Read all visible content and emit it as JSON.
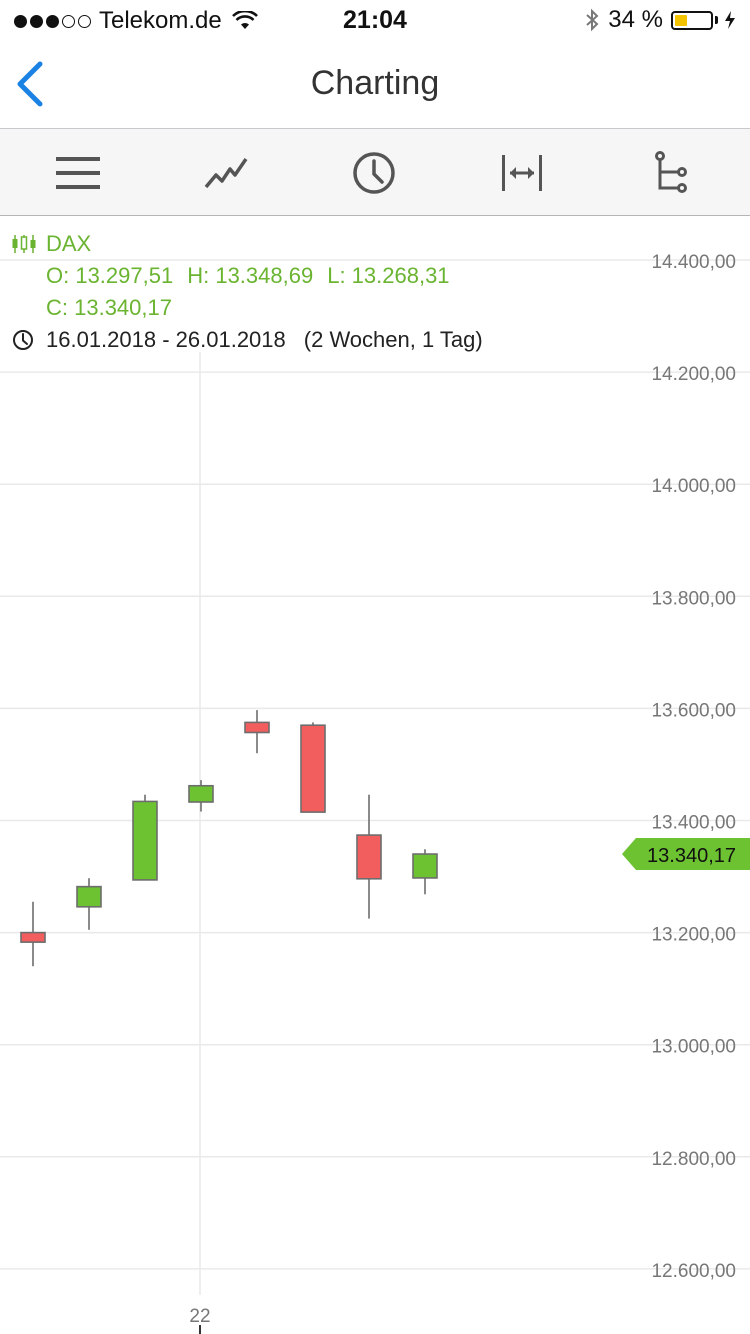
{
  "status_bar": {
    "carrier": "Telekom.de",
    "time": "21:04",
    "battery_percent": "34 %",
    "battery_level": 0.34,
    "signal_bars_filled": 3,
    "signal_bars_total": 5
  },
  "nav": {
    "title": "Charting"
  },
  "toolbar": {
    "icons": [
      "menu-icon",
      "line-chart-icon",
      "clock-icon",
      "expand-horizontal-icon",
      "tree-icon"
    ]
  },
  "instrument": {
    "name": "DAX",
    "open": "O: 13.297,51",
    "high": "H: 13.348,69",
    "low": "L: 13.268,31",
    "close": "C: 13.340,17",
    "range": "16.01.2018 - 26.01.2018",
    "range_extra": "(2 Wochen, 1 Tag)"
  },
  "colors": {
    "up": "#6cc231",
    "down": "#f25e5e",
    "legend_green": "#6ab431",
    "accent_blue": "#1a82e2"
  },
  "chart_data": {
    "type": "candlestick",
    "title": "DAX",
    "ylim": [
      12500,
      14500
    ],
    "y_ticks": [
      {
        "value": 14400,
        "label": "14.400,00"
      },
      {
        "value": 14200,
        "label": "14.200,00"
      },
      {
        "value": 14000,
        "label": "14.000,00"
      },
      {
        "value": 13800,
        "label": "13.800,00"
      },
      {
        "value": 13600,
        "label": "13.600,00"
      },
      {
        "value": 13400,
        "label": "13.400,00"
      },
      {
        "value": 13200,
        "label": "13.200,00"
      },
      {
        "value": 13000,
        "label": "13.000,00"
      },
      {
        "value": 12800,
        "label": "12.800,00"
      },
      {
        "value": 12600,
        "label": "12.600,00"
      }
    ],
    "x_ticks": [
      {
        "index": 3,
        "label": "22"
      }
    ],
    "current_value": 13340.17,
    "current_label": "13.340,17",
    "grid": true,
    "candles": [
      {
        "open": 13200,
        "high": 13255,
        "low": 13140,
        "close": 13183
      },
      {
        "open": 13246,
        "high": 13297,
        "low": 13205,
        "close": 13282
      },
      {
        "open": 13294,
        "high": 13446,
        "low": 13294,
        "close": 13434
      },
      {
        "open": 13433,
        "high": 13472,
        "low": 13416,
        "close": 13462
      },
      {
        "open": 13575,
        "high": 13597,
        "low": 13520,
        "close": 13557
      },
      {
        "open": 13570,
        "high": 13575,
        "low": 13415,
        "close": 13415
      },
      {
        "open": 13374,
        "high": 13446,
        "low": 13225,
        "close": 13296
      },
      {
        "open": 13297.51,
        "high": 13348.69,
        "low": 13268.31,
        "close": 13340.17
      }
    ]
  }
}
